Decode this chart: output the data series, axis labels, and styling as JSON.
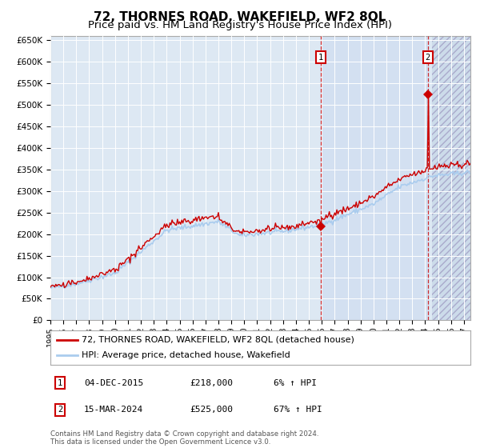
{
  "title": "72, THORNES ROAD, WAKEFIELD, WF2 8QL",
  "subtitle": "Price paid vs. HM Land Registry's House Price Index (HPI)",
  "ylim": [
    0,
    660000
  ],
  "yticks": [
    0,
    50000,
    100000,
    150000,
    200000,
    250000,
    300000,
    350000,
    400000,
    450000,
    500000,
    550000,
    600000,
    650000
  ],
  "ytick_labels": [
    "£0",
    "£50K",
    "£100K",
    "£150K",
    "£200K",
    "£250K",
    "£300K",
    "£350K",
    "£400K",
    "£450K",
    "£500K",
    "£550K",
    "£600K",
    "£650K"
  ],
  "xlim_start": 1995.0,
  "xlim_end": 2027.5,
  "xticks": [
    1995,
    1996,
    1997,
    1998,
    1999,
    2000,
    2001,
    2002,
    2003,
    2004,
    2005,
    2006,
    2007,
    2008,
    2009,
    2010,
    2011,
    2012,
    2013,
    2014,
    2015,
    2016,
    2017,
    2018,
    2019,
    2020,
    2021,
    2022,
    2023,
    2024,
    2025,
    2026,
    2027
  ],
  "hpi_color": "#aaccee",
  "price_color": "#cc0000",
  "bg_color": "#dde8f3",
  "sale1_x": 2015.92,
  "sale1_y": 218000,
  "sale1_label": "1",
  "sale1_date": "04-DEC-2015",
  "sale1_price": "£218,000",
  "sale1_hpi": "6% ↑ HPI",
  "sale2_x": 2024.21,
  "sale2_y": 525000,
  "sale2_label": "2",
  "sale2_date": "15-MAR-2024",
  "sale2_price": "£525,000",
  "sale2_hpi": "67% ↑ HPI",
  "legend_line1": "72, THORNES ROAD, WAKEFIELD, WF2 8QL (detached house)",
  "legend_line2": "HPI: Average price, detached house, Wakefield",
  "footnote": "Contains HM Land Registry data © Crown copyright and database right 2024.\nThis data is licensed under the Open Government Licence v3.0.",
  "title_fontsize": 11,
  "subtitle_fontsize": 9.5
}
